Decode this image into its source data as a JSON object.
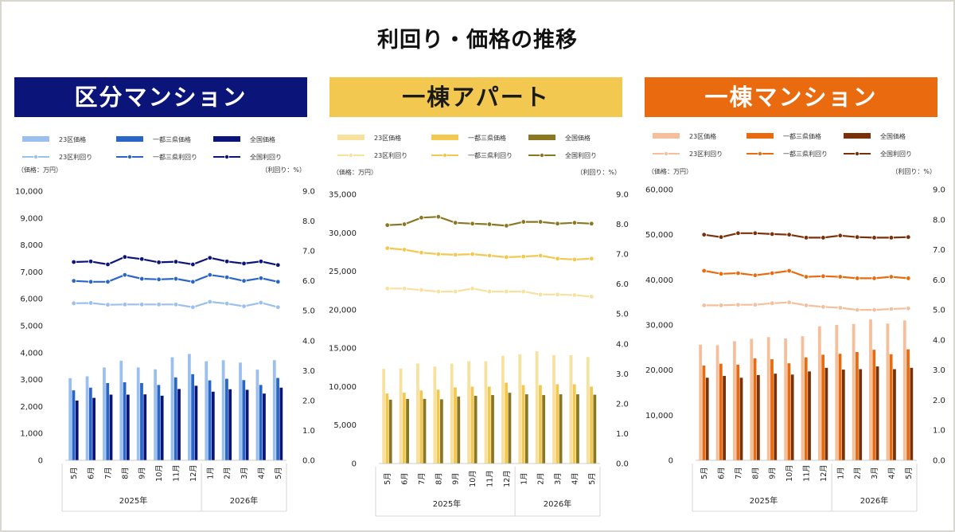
{
  "title": "利回り・価格の推移",
  "chart_data": [
    {
      "type": "bar+line",
      "title": "区分マンション",
      "left_axis_label": "（価格：万円）",
      "right_axis_label": "（利回り：%）",
      "ylim_left": [
        0,
        10000
      ],
      "ylim_right": [
        0,
        9
      ],
      "left_ticks": [
        "0",
        "1,000",
        "2,000",
        "3,000",
        "4,000",
        "5,000",
        "6,000",
        "7,000",
        "8,000",
        "9,000",
        "10,000"
      ],
      "right_ticks": [
        "0.0",
        "1.0",
        "2.0",
        "3.0",
        "4.0",
        "5.0",
        "6.0",
        "7.0",
        "8.0",
        "9.0"
      ],
      "categories": [
        "5月",
        "6月",
        "7月",
        "8月",
        "9月",
        "10月",
        "11月",
        "12月",
        "1月",
        "2月",
        "3月",
        "4月",
        "5月"
      ],
      "years": [
        {
          "label": "2025年",
          "count": 8
        },
        {
          "label": "2026年",
          "count": 5
        }
      ],
      "colors": {
        "banner": "#0b1478",
        "bar1": "#9bbfee",
        "bar2": "#2966c7",
        "bar3": "#0b1478",
        "line1": "#9bbfee",
        "line2": "#2966c7",
        "line3": "#0b1478"
      },
      "price_series": [
        {
          "name": "23区価格",
          "values": [
            3050,
            3120,
            3450,
            3700,
            3450,
            3380,
            3830,
            3950,
            3680,
            3720,
            3630,
            3370,
            3720
          ]
        },
        {
          "name": "一都三県価格",
          "values": [
            2600,
            2700,
            2870,
            2900,
            2870,
            2800,
            3080,
            3200,
            2970,
            3030,
            2980,
            2800,
            3060
          ]
        },
        {
          "name": "全国価格",
          "values": [
            2220,
            2320,
            2440,
            2440,
            2450,
            2400,
            2650,
            2770,
            2550,
            2640,
            2620,
            2480,
            2700
          ]
        }
      ],
      "yield_series": [
        {
          "name": "23区利回り",
          "values": [
            5.25,
            5.26,
            5.2,
            5.21,
            5.21,
            5.21,
            5.21,
            5.12,
            5.3,
            5.24,
            5.15,
            5.27,
            5.12
          ]
        },
        {
          "name": "一都三県利回り",
          "values": [
            6.0,
            5.97,
            5.97,
            6.2,
            6.07,
            6.05,
            6.07,
            5.97,
            6.2,
            6.12,
            6.0,
            6.09,
            5.97
          ]
        },
        {
          "name": "全国利回り",
          "values": [
            6.63,
            6.65,
            6.55,
            6.8,
            6.73,
            6.62,
            6.64,
            6.55,
            6.77,
            6.65,
            6.58,
            6.65,
            6.53
          ]
        }
      ]
    },
    {
      "type": "bar+line",
      "title": "一棟アパート",
      "left_axis_label": "（価格：万円）",
      "right_axis_label": "（利回り：%）",
      "ylim_left": [
        0,
        35000
      ],
      "ylim_right": [
        0,
        9
      ],
      "left_ticks": [
        "0",
        "5,000",
        "10,000",
        "15,000",
        "20,000",
        "25,000",
        "30,000",
        "35,000"
      ],
      "right_ticks": [
        "0.0",
        "1.0",
        "2.0",
        "3.0",
        "4.0",
        "5.0",
        "6.0",
        "7.0",
        "8.0",
        "9.0"
      ],
      "categories": [
        "5月",
        "6月",
        "7月",
        "8月",
        "9月",
        "10月",
        "11月",
        "12月",
        "1月",
        "2月",
        "3月",
        "4月",
        "5月"
      ],
      "years": [
        {
          "label": "2025年",
          "count": 8
        },
        {
          "label": "2026年",
          "count": 5
        }
      ],
      "colors": {
        "banner": "#f3c851",
        "bar1": "#f8e09e",
        "bar2": "#f3c851",
        "bar3": "#8b7722",
        "line1": "#f8e09e",
        "line2": "#f3c851",
        "line3": "#8b7722"
      },
      "price_series": [
        {
          "name": "23区価格",
          "values": [
            12300,
            12350,
            13000,
            12600,
            13000,
            13300,
            13300,
            14000,
            14200,
            14600,
            14100,
            14100,
            13850
          ]
        },
        {
          "name": "一都三県価格",
          "values": [
            9100,
            9200,
            9500,
            9600,
            9900,
            10000,
            10000,
            10500,
            10200,
            10200,
            10300,
            10300,
            10000
          ]
        },
        {
          "name": "全国価格",
          "values": [
            8300,
            8400,
            8400,
            8350,
            8700,
            8800,
            8900,
            9200,
            9000,
            8900,
            9000,
            9000,
            8950
          ]
        }
      ],
      "yield_series": [
        {
          "name": "23区利回り",
          "values": [
            5.85,
            5.85,
            5.8,
            5.75,
            5.75,
            5.85,
            5.75,
            5.75,
            5.75,
            5.65,
            5.65,
            5.63,
            5.58
          ]
        },
        {
          "name": "一都三県利回り",
          "values": [
            7.2,
            7.15,
            7.05,
            7.0,
            6.98,
            7.0,
            6.95,
            6.9,
            6.92,
            6.95,
            6.85,
            6.82,
            6.85
          ]
        },
        {
          "name": "全国利回り",
          "values": [
            7.97,
            8.0,
            8.22,
            8.25,
            8.05,
            8.02,
            8.0,
            7.95,
            8.08,
            8.08,
            8.02,
            8.05,
            8.02
          ]
        }
      ]
    },
    {
      "type": "bar+line",
      "title": "一棟マンション",
      "left_axis_label": "（価格：万円）",
      "right_axis_label": "（利回り：%）",
      "ylim_left": [
        0,
        60000
      ],
      "ylim_right": [
        0,
        9
      ],
      "left_ticks": [
        "0",
        "10,000",
        "20,000",
        "30,000",
        "40,000",
        "50,000",
        "60,000"
      ],
      "right_ticks": [
        "0.0",
        "1.0",
        "2.0",
        "3.0",
        "4.0",
        "5.0",
        "6.0",
        "7.0",
        "8.0",
        "9.0"
      ],
      "categories": [
        "5月",
        "6月",
        "7月",
        "8月",
        "9月",
        "10月",
        "11月",
        "12月",
        "1月",
        "2月",
        "3月",
        "4月",
        "5月"
      ],
      "years": [
        {
          "label": "2025年",
          "count": 8
        },
        {
          "label": "2026年",
          "count": 5
        }
      ],
      "colors": {
        "banner": "#ea6b0f",
        "bar1": "#f5bf9c",
        "bar2": "#ea6b0f",
        "bar3": "#7a3008",
        "line1": "#f5bf9c",
        "line2": "#ea6b0f",
        "line3": "#7a3008"
      },
      "price_series": [
        {
          "name": "23区価格",
          "values": [
            25600,
            25500,
            26400,
            26900,
            27300,
            27000,
            27500,
            29700,
            30000,
            30200,
            31200,
            30300,
            31000
          ]
        },
        {
          "name": "一都三県価格",
          "values": [
            21000,
            21400,
            21200,
            22600,
            22400,
            21500,
            22800,
            23400,
            23600,
            24000,
            24500,
            23500,
            24600
          ]
        },
        {
          "name": "全国価格",
          "values": [
            18300,
            18700,
            18300,
            18900,
            19200,
            19000,
            19700,
            20500,
            20100,
            20200,
            20800,
            20200,
            20500
          ]
        }
      ],
      "yield_series": [
        {
          "name": "23区利回り",
          "values": [
            5.15,
            5.15,
            5.17,
            5.17,
            5.22,
            5.25,
            5.15,
            5.1,
            5.07,
            5.0,
            5.0,
            5.03,
            5.05
          ]
        },
        {
          "name": "一都三県利回り",
          "values": [
            6.3,
            6.2,
            6.22,
            6.15,
            6.22,
            6.3,
            6.1,
            6.12,
            6.1,
            6.05,
            6.05,
            6.1,
            6.05
          ]
        },
        {
          "name": "全国利回り",
          "values": [
            7.5,
            7.42,
            7.55,
            7.55,
            7.52,
            7.5,
            7.4,
            7.4,
            7.47,
            7.42,
            7.4,
            7.4,
            7.42
          ]
        }
      ]
    }
  ]
}
